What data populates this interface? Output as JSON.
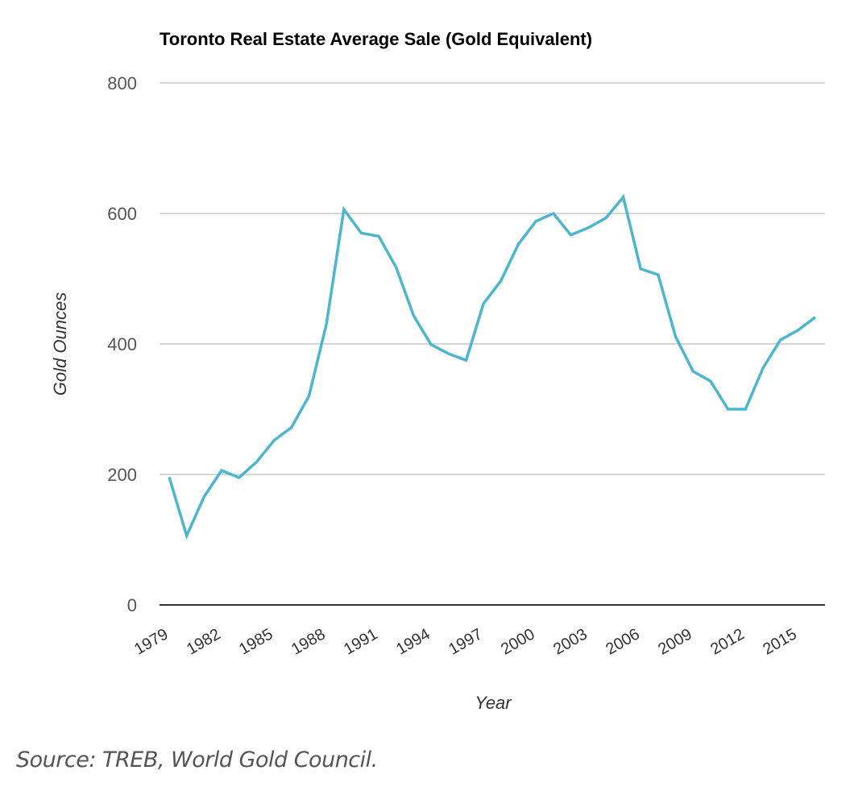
{
  "chart_data": {
    "type": "line",
    "title": "Toronto Real Estate Average Sale (Gold Equivalent)",
    "xlabel": "Year",
    "ylabel": "Gold Ounces",
    "ylim": [
      0,
      800
    ],
    "yticks": [
      0,
      200,
      400,
      600,
      800
    ],
    "xlim": [
      1979,
      2016
    ],
    "xticks": [
      1979,
      1982,
      1985,
      1988,
      1991,
      1994,
      1997,
      2000,
      2003,
      2006,
      2009,
      2012,
      2015
    ],
    "grid": true,
    "legend": "none",
    "line_color": "#4db6cf",
    "series": [
      {
        "name": "Gold Ounces",
        "x": [
          1979,
          1980,
          1981,
          1982,
          1983,
          1984,
          1985,
          1986,
          1987,
          1988,
          1989,
          1990,
          1991,
          1992,
          1993,
          1994,
          1995,
          1996,
          1997,
          1998,
          1999,
          2000,
          2001,
          2002,
          2003,
          2004,
          2005,
          2006,
          2007,
          2008,
          2009,
          2010,
          2011,
          2012,
          2013,
          2014,
          2015,
          2016
        ],
        "values": [
          196,
          106,
          166,
          206,
          195,
          219,
          252,
          272,
          320,
          430,
          606,
          570,
          565,
          517,
          443,
          399,
          385,
          375,
          462,
          497,
          553,
          588,
          600,
          567,
          578,
          593,
          625,
          515,
          506,
          411,
          358,
          343,
          300,
          300,
          363,
          406,
          421,
          441
        ]
      }
    ]
  },
  "footer": {
    "source": "Source: TREB, World Gold Council."
  }
}
